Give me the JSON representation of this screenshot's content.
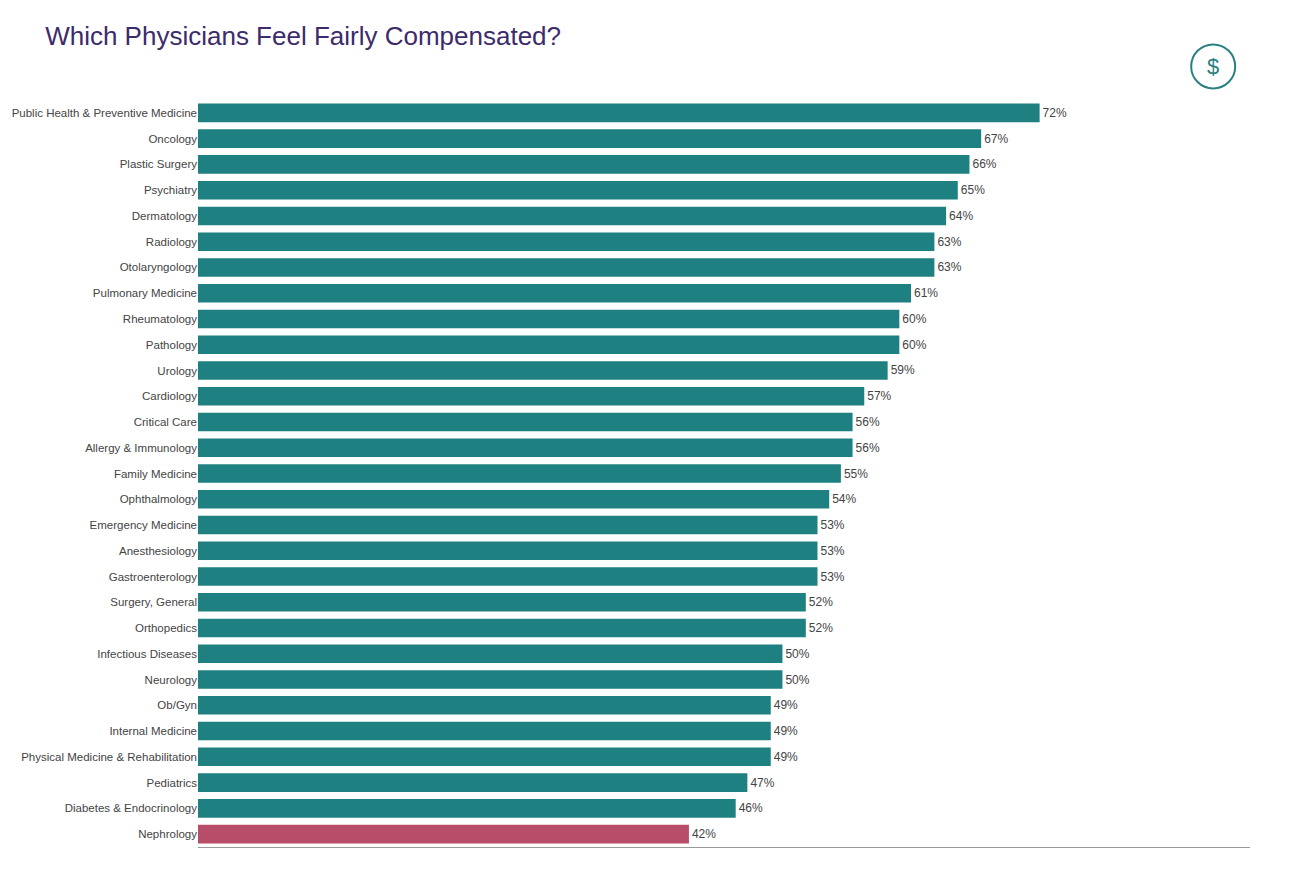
{
  "chart_data": {
    "type": "bar",
    "title": "Which Physicians Feel Fairly Compensated?",
    "orientation": "horizontal",
    "categories": [
      "Public Health & Preventive Medicine",
      "Oncology",
      "Plastic Surgery",
      "Psychiatry",
      "Dermatology",
      "Radiology",
      "Otolaryngology",
      "Pulmonary Medicine",
      "Rheumatology",
      "Pathology",
      "Urology",
      "Cardiology",
      "Critical Care",
      "Allergy & Immunology",
      "Family Medicine",
      "Ophthalmology",
      "Emergency Medicine",
      "Anesthesiology",
      "Gastroenterology",
      "Surgery, General",
      "Orthopedics",
      "Infectious Diseases",
      "Neurology",
      "Ob/Gyn",
      "Internal Medicine",
      "Physical Medicine & Rehabilitation",
      "Pediatrics",
      "Diabetes & Endocrinology",
      "Nephrology"
    ],
    "values": [
      72,
      67,
      66,
      65,
      64,
      63,
      63,
      61,
      60,
      60,
      59,
      57,
      56,
      56,
      55,
      54,
      53,
      53,
      53,
      52,
      52,
      50,
      50,
      49,
      49,
      49,
      47,
      46,
      42
    ],
    "value_labels": [
      "72%",
      "67%",
      "66%",
      "65%",
      "64%",
      "63%",
      "63%",
      "61%",
      "60%",
      "60%",
      "59%",
      "57%",
      "56%",
      "56%",
      "55%",
      "54%",
      "53%",
      "53%",
      "53%",
      "52%",
      "52%",
      "50%",
      "50%",
      "49%",
      "49%",
      "49%",
      "47%",
      "46%",
      "42%"
    ],
    "data_labels": true,
    "colors": [
      "#1e8080",
      "#1e8080",
      "#1e8080",
      "#1e8080",
      "#1e8080",
      "#1e8080",
      "#1e8080",
      "#1e8080",
      "#1e8080",
      "#1e8080",
      "#1e8080",
      "#1e8080",
      "#1e8080",
      "#1e8080",
      "#1e8080",
      "#1e8080",
      "#1e8080",
      "#1e8080",
      "#1e8080",
      "#1e8080",
      "#1e8080",
      "#1e8080",
      "#1e8080",
      "#1e8080",
      "#1e8080",
      "#1e8080",
      "#1e8080",
      "#1e8080",
      "#b84d6a"
    ],
    "xlim": [
      0,
      90
    ],
    "grid": false,
    "tick_labels": "y",
    "annotations": [
      {
        "text": "$",
        "color": "#2a8080"
      }
    ]
  }
}
